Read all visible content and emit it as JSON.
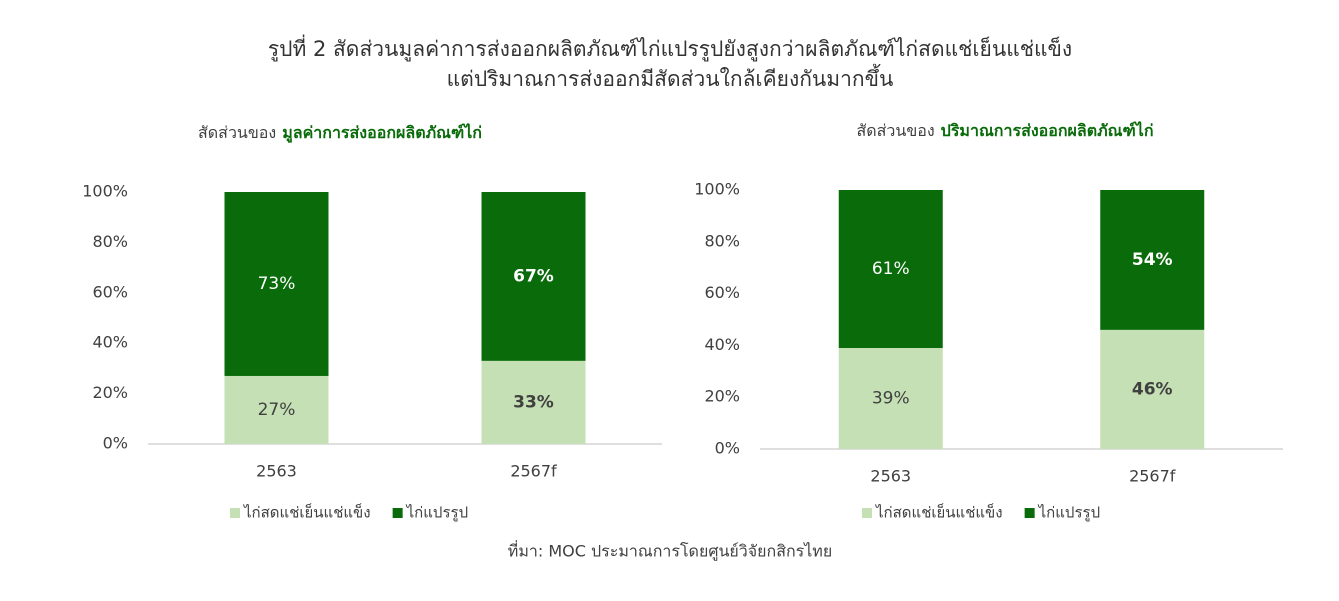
{
  "title": [
    "รูปที่ 2  สัดส่วนมูลค่าการส่งออกผลิตภัณฑ์ไก่แปรรูปยังสูงกว่าผลิตภัณฑ์ไก่สดแช่เย็นแช่แข็ง",
    "แต่ปริมาณการส่งออกมีสัดส่วนใกล้เคียงกันมากขึ้น"
  ],
  "source": "ที่มา: MOC ประมาณการโดยศูนย์วิจัยกสิกรไทย",
  "chart_data": [
    {
      "type": "stacked_bar",
      "subtitle": [
        "สัดส่วนของ",
        "มูลค่าการส่งออกผลิตภัณฑ์ไก่"
      ],
      "categories": [
        "2563",
        "2567f"
      ],
      "series": [
        {
          "name": "ไก่สดแช่เย็นแช่แข็ง",
          "color": "#c5e0b4",
          "values": [
            27,
            33
          ],
          "value_labels": [
            "27%",
            "33%"
          ]
        },
        {
          "name": "ไก่แปรรูป",
          "color": "#0a6b0a",
          "values": [
            73,
            67
          ],
          "value_labels": [
            "73%",
            "67%"
          ]
        }
      ],
      "ylim": [
        0,
        100
      ],
      "yticks": [
        {
          "value": 0,
          "label": "0%"
        },
        {
          "value": 20,
          "label": "20%"
        },
        {
          "value": 40,
          "label": "40%"
        },
        {
          "value": 60,
          "label": "60%"
        },
        {
          "value": 80,
          "label": "80%"
        },
        {
          "value": 100,
          "label": "100%"
        }
      ],
      "legend": "bottom"
    },
    {
      "type": "stacked_bar",
      "subtitle": [
        "สัดส่วนของ",
        "ปริมาณการส่งออกผลิตภัณฑ์ไก่"
      ],
      "categories": [
        "2563",
        "2567f"
      ],
      "series": [
        {
          "name": "ไก่สดแช่เย็นแช่แข็ง",
          "color": "#c5e0b4",
          "values": [
            39,
            46
          ],
          "value_labels": [
            "39%",
            "46%"
          ]
        },
        {
          "name": "ไก่แปรรูป",
          "color": "#0a6b0a",
          "values": [
            61,
            54
          ],
          "value_labels": [
            "61%",
            "54%"
          ]
        }
      ],
      "ylim": [
        0,
        100
      ],
      "yticks": [
        {
          "value": 0,
          "label": "0%"
        },
        {
          "value": 20,
          "label": "20%"
        },
        {
          "value": 40,
          "label": "40%"
        },
        {
          "value": 60,
          "label": "60%"
        },
        {
          "value": 80,
          "label": "80%"
        },
        {
          "value": 100,
          "label": "100%"
        }
      ],
      "legend": "bottom"
    }
  ]
}
